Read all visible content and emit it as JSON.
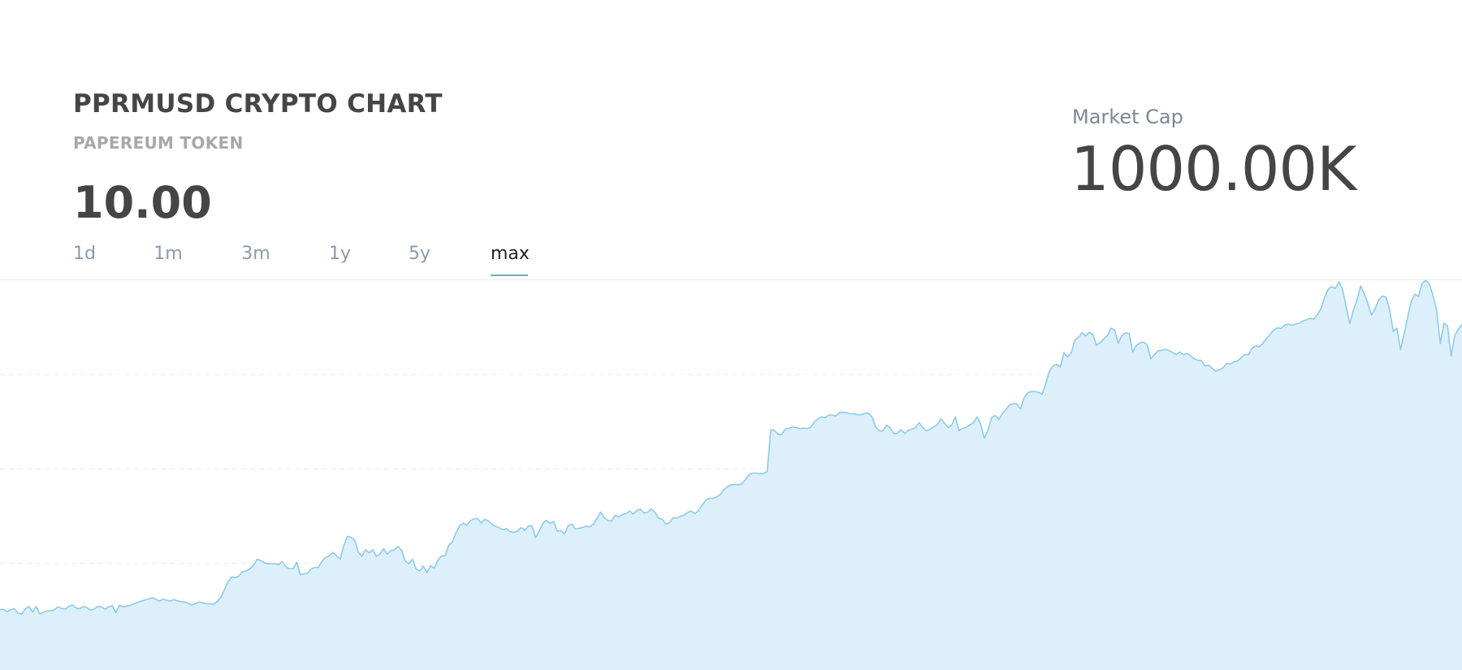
{
  "header": {
    "title": "PPRMUSD CRYPTO CHART",
    "subtitle": "PAPEREUM TOKEN",
    "price": "10.00",
    "market_cap_label": "Market Cap",
    "market_cap_value": "1000.00K"
  },
  "ranges": [
    {
      "label": "1d",
      "active": false
    },
    {
      "label": "1m",
      "active": false
    },
    {
      "label": "3m",
      "active": false
    },
    {
      "label": "1y",
      "active": false
    },
    {
      "label": "5y",
      "active": false
    },
    {
      "label": "max",
      "active": true
    }
  ],
  "colors": {
    "line": "#8ccbec",
    "fill": "#ddeffb",
    "accent": "#5ab0d8",
    "grid": "#eeeeee"
  },
  "chart_data": {
    "type": "area",
    "ylim": [
      0,
      100
    ],
    "grid": true,
    "gridlines": [
      75,
      50,
      25
    ],
    "series": [
      {
        "values": [
          12.8,
          12.8,
          12.2,
          12.8,
          13.0,
          11.8,
          11.6,
          13.0,
          13.6,
          12.1,
          13.6,
          11.6,
          12.1,
          12.4,
          12.4,
          12.7,
          13.5,
          13.1,
          12.9,
          13.6,
          14.0,
          13.2,
          13.0,
          13.6,
          13.3,
          12.6,
          12.9,
          13.6,
          13.5,
          12.9,
          13.5,
          13.8,
          12.0,
          13.9,
          13.5,
          13.7,
          13.9,
          14.3,
          14.7,
          15.0,
          15.3,
          15.6,
          15.9,
          15.6,
          15.0,
          15.5,
          15.3,
          15.0,
          15.4,
          15.1,
          14.9,
          14.8,
          14.5,
          14.0,
          14.3,
          14.8,
          14.6,
          14.3,
          14.3,
          14.2,
          14.9,
          16.0,
          18.0,
          20.1,
          21.4,
          21.3,
          21.6,
          22.8,
          23.0,
          23.6,
          24.4,
          26.1,
          25.8,
          25.2,
          24.9,
          24.9,
          24.9,
          24.7,
          25.5,
          24.1,
          23.6,
          23.6,
          25.3,
          22.1,
          22.2,
          22.4,
          23.6,
          23.9,
          24.0,
          25.6,
          26.6,
          27.0,
          27.9,
          27.0,
          26.1,
          29.7,
          32.2,
          31.9,
          31.2,
          28.0,
          26.9,
          28.6,
          27.8,
          28.6,
          26.9,
          27.5,
          28.9,
          27.5,
          28.4,
          28.6,
          29.5,
          28.4,
          25.6,
          24.9,
          26.1,
          23.5,
          23.0,
          24.3,
          22.6,
          24.4,
          23.8,
          25.8,
          27.0,
          27.0,
          29.8,
          30.7,
          33.1,
          34.9,
          35.7,
          35.1,
          36.3,
          36.8,
          36.8,
          35.7,
          36.7,
          36.2,
          35.3,
          34.8,
          34.4,
          33.9,
          34.2,
          33.4,
          33.2,
          33.6,
          34.5,
          33.7,
          34.9,
          35.0,
          31.8,
          33.6,
          35.6,
          36.4,
          35.6,
          36.1,
          33.5,
          33.7,
          32.8,
          35.0,
          35.4,
          34.1,
          34.3,
          34.5,
          34.9,
          34.7,
          35.4,
          37.0,
          38.6,
          37.1,
          36.4,
          36.2,
          37.8,
          37.3,
          38.0,
          38.2,
          38.9,
          38.1,
          39.0,
          39.4,
          38.3,
          38.6,
          39.4,
          38.5,
          37.0,
          36.7,
          35.4,
          35.8,
          37.1,
          37.0,
          37.5,
          37.8,
          38.5,
          38.9,
          38.2,
          38.9,
          40.4,
          41.7,
          42.3,
          42.2,
          42.6,
          43.2,
          44.5,
          45.3,
          45.8,
          45.9,
          45.8,
          46.1,
          47.2,
          48.5,
          48.9,
          48.9,
          48.8,
          48.8,
          49.3,
          60.4,
          60.2,
          59.2,
          59.1,
          60.6,
          60.8,
          61.1,
          61.0,
          60.7,
          60.8,
          60.7,
          61.0,
          62.4,
          63.3,
          63.8,
          63.6,
          64.3,
          64.3,
          64.0,
          65.0,
          65.0,
          64.9,
          64.6,
          64.6,
          64.4,
          64.4,
          64.7,
          64.8,
          63.7,
          61.1,
          60.1,
          60.1,
          61.6,
          60.9,
          59.3,
          59.5,
          60.4,
          59.4,
          60.3,
          60.5,
          61.0,
          62.3,
          60.9,
          60.1,
          60.5,
          61.2,
          61.7,
          63.3,
          62.1,
          61.0,
          61.6,
          63.8,
          60.1,
          60.8,
          61.0,
          61.7,
          62.2,
          63.8,
          61.8,
          58.2,
          60.2,
          63.6,
          64.2,
          63.1,
          64.7,
          65.8,
          67.0,
          67.3,
          67.2,
          65.9,
          68.9,
          70.2,
          70.5,
          70.5,
          70.3,
          69.8,
          72.7,
          75.9,
          77.3,
          77.7,
          77.0,
          80.8,
          79.7,
          80.7,
          84.1,
          84.8,
          86.1,
          85.3,
          86.2,
          85.6,
          82.8,
          83.5,
          84.4,
          85.3,
          87.3,
          86.8,
          83.3,
          85.4,
          86.0,
          85.9,
          81.0,
          82.7,
          83.4,
          83.6,
          82.9,
          79.2,
          80.3,
          81.3,
          81.4,
          81.7,
          81.4,
          80.9,
          80.3,
          81.0,
          80.3,
          80.6,
          80.0,
          79.2,
          78.8,
          78.7,
          77.3,
          77.5,
          76.6,
          75.9,
          76.3,
          76.8,
          77.9,
          77.8,
          78.4,
          78.6,
          79.5,
          80.3,
          80.3,
          82.0,
          82.6,
          82.4,
          83.3,
          84.6,
          85.7,
          86.8,
          87.4,
          87.2,
          88.1,
          88.4,
          88.0,
          88.4,
          88.6,
          89.2,
          89.5,
          89.9,
          89.7,
          90.8,
          92.4,
          95.3,
          97.6,
          98.3,
          97.8,
          99.6,
          97.5,
          92.9,
          88.5,
          92.1,
          94.8,
          98.5,
          96.4,
          93.8,
          90.8,
          92.5,
          94.8,
          95.8,
          95.5,
          92.2,
          86.4,
          87.3,
          81.6,
          85.7,
          90.3,
          94.5,
          96.3,
          95.7,
          99.2,
          100.0,
          98.9,
          96.0,
          91.9,
          83.2,
          88.6,
          87.9,
          79.9,
          85.4,
          87.0,
          88.3
        ]
      }
    ]
  }
}
